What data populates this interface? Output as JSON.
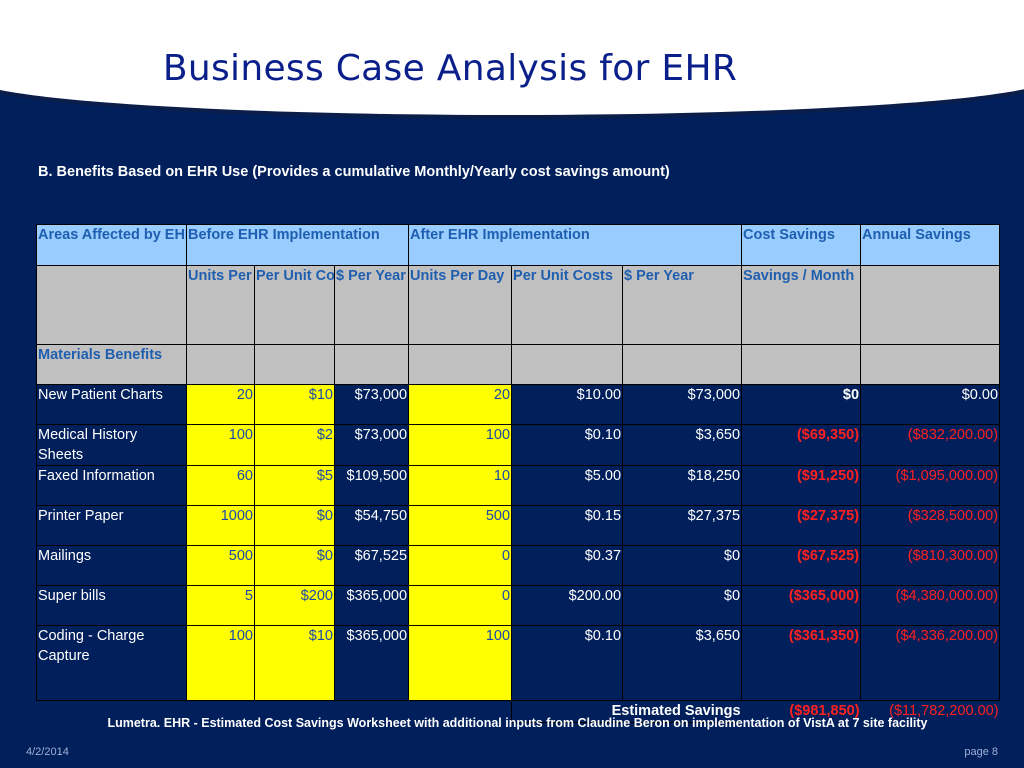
{
  "slide": {
    "title": "Business Case Analysis for EHR",
    "subtitle": "B.  Benefits Based on EHR Use (Provides a cumulative Monthly/Yearly cost savings amount)",
    "caption": "Lumetra. EHR - Estimated Cost Savings Worksheet with additional inputs from Claudine Beron on implementation of VistA at 7 site facility",
    "date": "4/2/2014",
    "page": "page 8"
  },
  "table": {
    "groups": {
      "areas": "Areas Affected by EHR",
      "before": "Before EHR Implementation",
      "after": "After EHR Implementation",
      "cost_savings": "Cost Savings",
      "annual_savings": "Annual Savings"
    },
    "columns": {
      "before_units": "Units Per Day",
      "before_cost": "Per Unit Costs",
      "before_year": "$ Per Year",
      "after_units": "Units Per Day",
      "after_cost": "Per Unit Costs",
      "after_year": "$ Per Year",
      "savings_month": "Savings / Month"
    },
    "section_label": "Materials Benefits",
    "rows": [
      {
        "label": "New Patient Charts",
        "bu": "20",
        "bc": "$10",
        "by": "$73,000",
        "au": "20",
        "ac": "$10.00",
        "ay": "$73,000",
        "sm": "$0",
        "as": "$0.00"
      },
      {
        "label": "Medical History Sheets",
        "bu": "100",
        "bc": "$2",
        "by": "$73,000",
        "au": "100",
        "ac": "$0.10",
        "ay": "$3,650",
        "sm": "($69,350)",
        "as": "($832,200.00)"
      },
      {
        "label": "Faxed Information",
        "bu": "60",
        "bc": "$5",
        "by": "$109,500",
        "au": "10",
        "ac": "$5.00",
        "ay": "$18,250",
        "sm": "($91,250)",
        "as": "($1,095,000.00)"
      },
      {
        "label": "Printer Paper",
        "bu": "1000",
        "bc": "$0",
        "by": "$54,750",
        "au": "500",
        "ac": "$0.15",
        "ay": "$27,375",
        "sm": "($27,375)",
        "as": "($328,500.00)"
      },
      {
        "label": "Mailings",
        "bu": "500",
        "bc": "$0",
        "by": "$67,525",
        "au": "0",
        "ac": "$0.37",
        "ay": "$0",
        "sm": "($67,525)",
        "as": "($810,300.00)"
      },
      {
        "label": "Super bills",
        "bu": "5",
        "bc": "$200",
        "by": "$365,000",
        "au": "0",
        "ac": "$200.00",
        "ay": "$0",
        "sm": "($365,000)",
        "as": "($4,380,000.00)"
      },
      {
        "label": "Coding - Charge Capture",
        "bu": "100",
        "bc": "$10",
        "by": "$365,000",
        "au": "100",
        "ac": "$0.10",
        "ay": "$3,650",
        "sm": "($361,350)",
        "as": "($4,336,200.00)"
      }
    ],
    "total": {
      "label": "Estimated Savings",
      "savings_month": "($981,850)",
      "annual_savings": "($11,782,200.00)"
    }
  }
}
